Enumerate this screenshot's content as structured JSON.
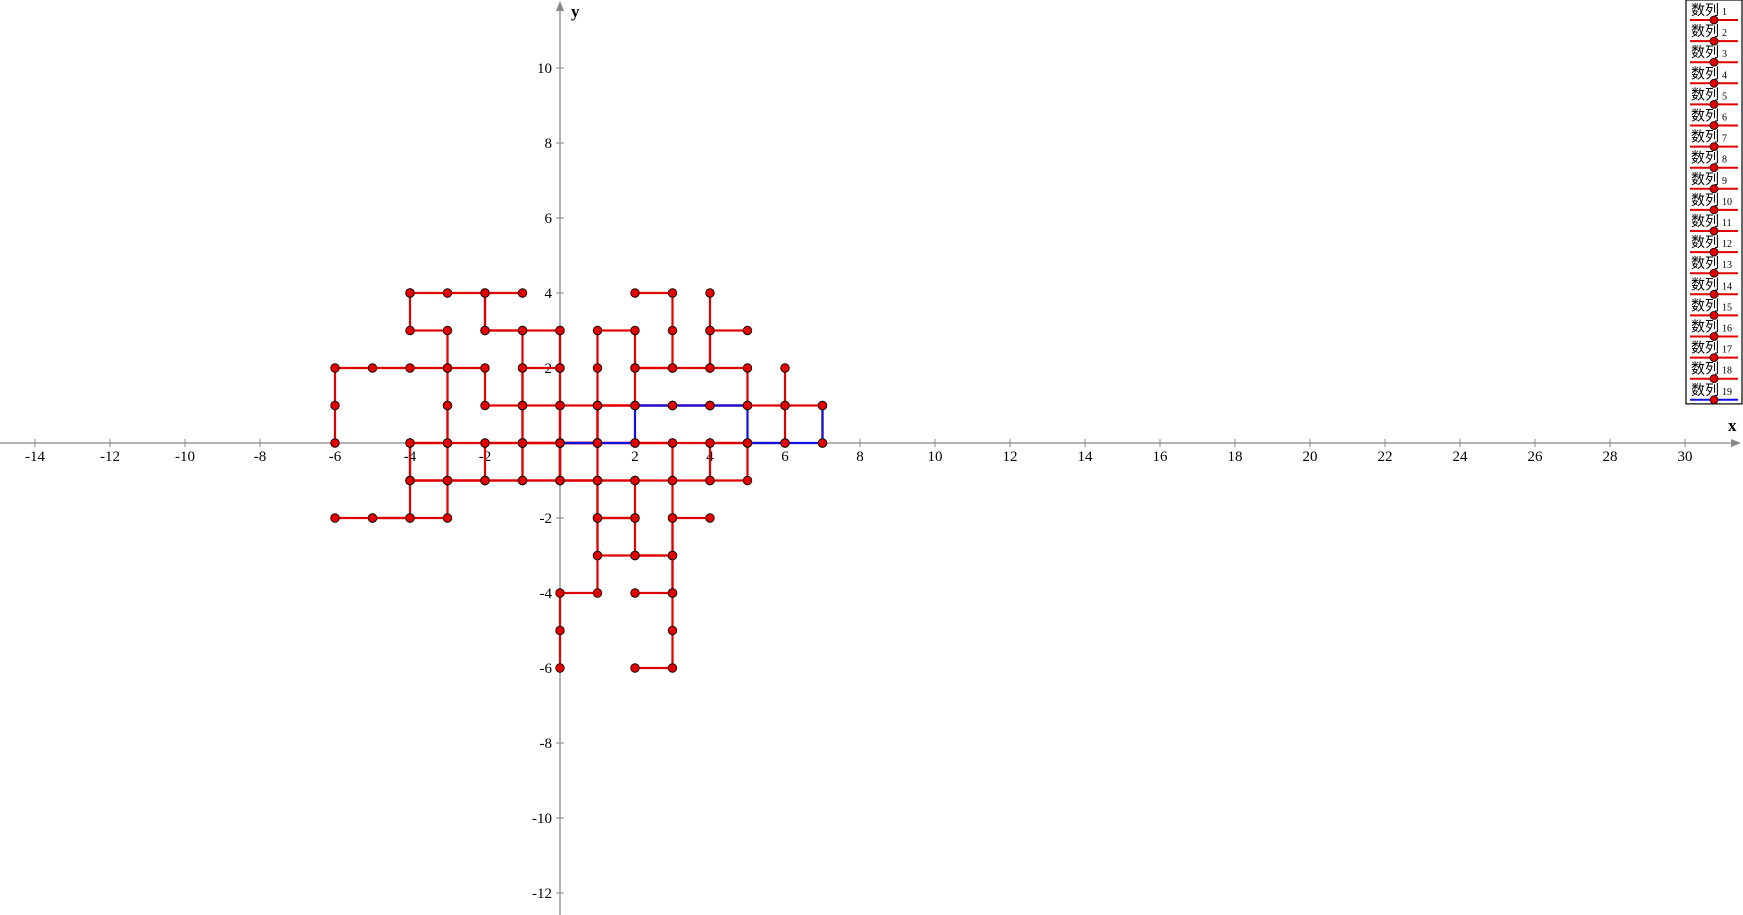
{
  "chart_data": {
    "type": "line",
    "title": "",
    "xlabel": "x",
    "ylabel": "y",
    "xlim": [
      -15,
      31.5
    ],
    "ylim": [
      -12.7,
      11.8
    ],
    "x_ticks": [
      -14,
      -12,
      -10,
      -8,
      -6,
      -4,
      -2,
      2,
      4,
      6,
      8,
      10,
      12,
      14,
      16,
      18,
      20,
      22,
      24,
      26,
      28,
      30
    ],
    "y_ticks": [
      -12,
      -10,
      -8,
      -6,
      -4,
      -2,
      2,
      4,
      6,
      8,
      10
    ],
    "grid": false,
    "legend_position": "top-right",
    "colors": {
      "red_series": "#e00000",
      "marker_fill": "#e00000",
      "highlight_series": "#1010e0",
      "axis": "#888888"
    },
    "series": [
      {
        "name": "数列 1",
        "color": "#e00000",
        "points": [
          [
            0,
            0
          ],
          [
            -1,
            0
          ],
          [
            -1,
            1
          ],
          [
            -2,
            1
          ],
          [
            -2,
            2
          ],
          [
            -3,
            2
          ],
          [
            -4,
            2
          ],
          [
            -5,
            2
          ],
          [
            -6,
            2
          ],
          [
            -6,
            1
          ],
          [
            -6,
            0
          ]
        ]
      },
      {
        "name": "数列 2",
        "color": "#e00000",
        "points": [
          [
            0,
            0
          ],
          [
            0,
            -1
          ],
          [
            1,
            -1
          ],
          [
            2,
            -1
          ],
          [
            2,
            -2
          ],
          [
            1,
            -2
          ],
          [
            1,
            -3
          ],
          [
            1,
            -4
          ],
          [
            0,
            -4
          ],
          [
            0,
            -5
          ],
          [
            0,
            -6
          ]
        ]
      },
      {
        "name": "数列 3",
        "color": "#e00000",
        "points": [
          [
            0,
            0
          ],
          [
            1,
            0
          ],
          [
            1,
            1
          ],
          [
            2,
            1
          ],
          [
            2,
            2
          ],
          [
            3,
            2
          ],
          [
            3,
            3
          ],
          [
            3,
            4
          ],
          [
            2,
            4
          ]
        ]
      },
      {
        "name": "数列 4",
        "color": "#e00000",
        "points": [
          [
            0,
            0
          ],
          [
            -1,
            0
          ],
          [
            -2,
            0
          ],
          [
            -3,
            0
          ],
          [
            -3,
            -1
          ],
          [
            -3,
            -2
          ],
          [
            -4,
            -2
          ],
          [
            -5,
            -2
          ],
          [
            -6,
            -2
          ]
        ]
      },
      {
        "name": "数列 5",
        "color": "#e00000",
        "points": [
          [
            0,
            0
          ],
          [
            0,
            1
          ],
          [
            0,
            2
          ],
          [
            0,
            3
          ],
          [
            -1,
            3
          ],
          [
            -2,
            3
          ],
          [
            -2,
            4
          ],
          [
            -3,
            4
          ],
          [
            -4,
            4
          ]
        ]
      },
      {
        "name": "数列 6",
        "color": "#e00000",
        "points": [
          [
            0,
            0
          ],
          [
            1,
            0
          ],
          [
            2,
            0
          ],
          [
            3,
            0
          ],
          [
            4,
            0
          ],
          [
            5,
            0
          ],
          [
            5,
            -1
          ],
          [
            4,
            -1
          ]
        ]
      },
      {
        "name": "数列 7",
        "color": "#e00000",
        "points": [
          [
            0,
            0
          ],
          [
            -1,
            0
          ],
          [
            -1,
            -1
          ],
          [
            -2,
            -1
          ],
          [
            -3,
            -1
          ],
          [
            -4,
            -1
          ],
          [
            -4,
            0
          ],
          [
            -3,
            0
          ],
          [
            -3,
            1
          ],
          [
            -3,
            2
          ],
          [
            -3,
            3
          ],
          [
            -4,
            3
          ],
          [
            -4,
            4
          ]
        ]
      },
      {
        "name": "数列 8",
        "color": "#e00000",
        "points": [
          [
            0,
            0
          ],
          [
            0,
            -1
          ],
          [
            1,
            -1
          ],
          [
            2,
            -1
          ],
          [
            3,
            -1
          ],
          [
            3,
            -2
          ],
          [
            3,
            -3
          ],
          [
            3,
            -4
          ],
          [
            3,
            -5
          ],
          [
            3,
            -6
          ],
          [
            2,
            -6
          ]
        ]
      },
      {
        "name": "数列 9",
        "color": "#e00000",
        "points": [
          [
            0,
            0
          ],
          [
            1,
            0
          ],
          [
            1,
            1
          ],
          [
            1,
            2
          ],
          [
            1,
            3
          ],
          [
            2,
            3
          ],
          [
            2,
            2
          ],
          [
            3,
            2
          ],
          [
            4,
            2
          ],
          [
            4,
            3
          ],
          [
            5,
            3
          ]
        ]
      },
      {
        "name": "数列 10",
        "color": "#e00000",
        "points": [
          [
            0,
            0
          ],
          [
            0,
            1
          ],
          [
            -1,
            1
          ],
          [
            -1,
            2
          ],
          [
            -1,
            3
          ],
          [
            -2,
            3
          ],
          [
            -2,
            4
          ],
          [
            -1,
            4
          ]
        ]
      },
      {
        "name": "数列 11",
        "color": "#e00000",
        "points": [
          [
            0,
            0
          ],
          [
            1,
            0
          ],
          [
            1,
            -1
          ],
          [
            1,
            -2
          ],
          [
            2,
            -2
          ],
          [
            2,
            -3
          ],
          [
            3,
            -3
          ],
          [
            3,
            -2
          ],
          [
            4,
            -2
          ]
        ]
      },
      {
        "name": "数列 12",
        "color": "#e00000",
        "points": [
          [
            0,
            0
          ],
          [
            0,
            1
          ],
          [
            1,
            1
          ],
          [
            2,
            1
          ],
          [
            3,
            1
          ],
          [
            4,
            1
          ],
          [
            5,
            1
          ],
          [
            5,
            2
          ],
          [
            4,
            2
          ],
          [
            4,
            3
          ],
          [
            4,
            4
          ]
        ]
      },
      {
        "name": "数列 13",
        "color": "#e00000",
        "points": [
          [
            0,
            0
          ],
          [
            -1,
            0
          ],
          [
            -2,
            0
          ],
          [
            -2,
            -1
          ],
          [
            -3,
            -1
          ],
          [
            -4,
            -1
          ],
          [
            -4,
            0
          ],
          [
            -3,
            0
          ],
          [
            -3,
            1
          ]
        ]
      },
      {
        "name": "数列 14",
        "color": "#e00000",
        "points": [
          [
            0,
            0
          ],
          [
            0,
            -1
          ],
          [
            -1,
            -1
          ],
          [
            -1,
            0
          ],
          [
            -1,
            1
          ],
          [
            -1,
            2
          ],
          [
            0,
            2
          ],
          [
            0,
            3
          ],
          [
            0,
            2
          ]
        ]
      },
      {
        "name": "数列 15",
        "color": "#e00000",
        "points": [
          [
            0,
            0
          ],
          [
            1,
            0
          ],
          [
            2,
            0
          ],
          [
            3,
            0
          ],
          [
            3,
            -1
          ],
          [
            4,
            -1
          ],
          [
            4,
            0
          ],
          [
            5,
            0
          ],
          [
            6,
            0
          ],
          [
            6,
            1
          ],
          [
            7,
            1
          ],
          [
            7,
            0
          ]
        ]
      },
      {
        "name": "数列 16",
        "color": "#e00000",
        "points": [
          [
            0,
            0
          ],
          [
            0,
            -1
          ],
          [
            1,
            -1
          ],
          [
            1,
            -2
          ],
          [
            1,
            -3
          ],
          [
            2,
            -3
          ],
          [
            3,
            -3
          ],
          [
            3,
            -4
          ],
          [
            2,
            -4
          ]
        ]
      },
      {
        "name": "数列 17",
        "color": "#e00000",
        "points": [
          [
            0,
            0
          ],
          [
            1,
            0
          ],
          [
            1,
            1
          ],
          [
            2,
            1
          ],
          [
            3,
            1
          ],
          [
            4,
            1
          ],
          [
            5,
            1
          ],
          [
            6,
            1
          ],
          [
            6,
            2
          ]
        ]
      },
      {
        "name": "数列 18",
        "color": "#e00000",
        "points": [
          [
            0,
            0
          ],
          [
            0,
            -1
          ],
          [
            -1,
            -1
          ],
          [
            -2,
            -1
          ],
          [
            -3,
            -1
          ],
          [
            -4,
            -1
          ],
          [
            -4,
            -2
          ],
          [
            -5,
            -2
          ]
        ]
      },
      {
        "name": "数列 19",
        "color": "#1010e0",
        "points": [
          [
            0,
            0
          ],
          [
            1,
            0
          ],
          [
            2,
            0
          ],
          [
            2,
            1
          ],
          [
            3,
            1
          ],
          [
            4,
            1
          ],
          [
            5,
            1
          ],
          [
            5,
            0
          ],
          [
            6,
            0
          ],
          [
            7,
            0
          ],
          [
            7,
            1
          ]
        ]
      }
    ]
  }
}
